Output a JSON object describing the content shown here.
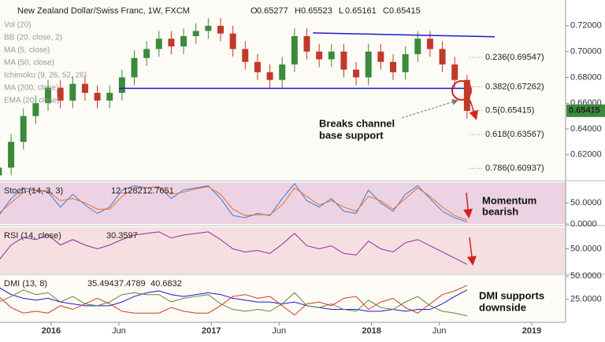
{
  "chart_data": [
    {
      "type": "candlestick",
      "title": "New Zealand Dollar/Swiss Franc, 1W, FXCM",
      "ohlc": [
        {
          "label": "O",
          "value": 0.65277
        },
        {
          "label": "H",
          "value": 0.65523
        },
        {
          "label": "L",
          "value": 0.65161
        },
        {
          "label": "C",
          "value": 0.65415
        }
      ],
      "indicator_labels": [
        "Vol (20)",
        "BB (20, close, 2)",
        "MA (5, close)",
        "MA (50, close)",
        "Ichimoku (9, 26, 52, 26)",
        "MA (200, close)",
        "EMA (20, close)"
      ],
      "x": [
        -17,
        -13,
        -9,
        -5,
        -1,
        3,
        7,
        11,
        15,
        19,
        23,
        27,
        31,
        35,
        39,
        43,
        47,
        51,
        55,
        59,
        63,
        67,
        71,
        75,
        79,
        83,
        87,
        91,
        95,
        99,
        103,
        107,
        111,
        115,
        119,
        123,
        127,
        131,
        135
      ],
      "open": [
        0.604,
        0.61,
        0.63,
        0.65,
        0.66,
        0.672,
        0.662,
        0.675,
        0.668,
        0.662,
        0.668,
        0.68,
        0.695,
        0.702,
        0.71,
        0.704,
        0.712,
        0.716,
        0.72,
        0.714,
        0.702,
        0.692,
        0.684,
        0.678,
        0.69,
        0.712,
        0.7,
        0.694,
        0.7,
        0.686,
        0.68,
        0.7,
        0.692,
        0.684,
        0.698,
        0.71,
        0.702,
        0.69,
        0.678
      ],
      "high": [
        0.614,
        0.636,
        0.656,
        0.666,
        0.678,
        0.678,
        0.681,
        0.681,
        0.674,
        0.674,
        0.686,
        0.701,
        0.708,
        0.716,
        0.716,
        0.718,
        0.722,
        0.726,
        0.726,
        0.72,
        0.708,
        0.698,
        0.69,
        0.696,
        0.718,
        0.718,
        0.706,
        0.706,
        0.706,
        0.692,
        0.706,
        0.706,
        0.698,
        0.704,
        0.716,
        0.716,
        0.708,
        0.696,
        0.682
      ],
      "low": [
        0.598,
        0.604,
        0.624,
        0.644,
        0.654,
        0.656,
        0.656,
        0.662,
        0.656,
        0.656,
        0.662,
        0.674,
        0.689,
        0.696,
        0.698,
        0.698,
        0.706,
        0.71,
        0.708,
        0.696,
        0.686,
        0.678,
        0.672,
        0.672,
        0.684,
        0.694,
        0.688,
        0.688,
        0.68,
        0.674,
        0.674,
        0.686,
        0.678,
        0.678,
        0.692,
        0.696,
        0.684,
        0.672,
        0.648
      ],
      "close": [
        0.61,
        0.63,
        0.65,
        0.66,
        0.672,
        0.662,
        0.675,
        0.668,
        0.662,
        0.668,
        0.68,
        0.695,
        0.702,
        0.71,
        0.704,
        0.712,
        0.716,
        0.72,
        0.714,
        0.702,
        0.692,
        0.684,
        0.678,
        0.69,
        0.712,
        0.7,
        0.694,
        0.7,
        0.686,
        0.68,
        0.7,
        0.692,
        0.684,
        0.698,
        0.71,
        0.702,
        0.69,
        0.678,
        0.654
      ],
      "up_color": "#3c8a3c",
      "down_color": "#c0392b",
      "xlim": [
        -16.6,
        167
      ],
      "ylim": [
        0.601,
        0.74
      ],
      "yticks": [
        {
          "value": 0.62,
          "label": "0.62000"
        },
        {
          "value": 0.64,
          "label": "0.64000"
        },
        {
          "value": 0.66,
          "label": "0.66000"
        },
        {
          "value": 0.68,
          "label": "0.68000"
        },
        {
          "value": 0.7,
          "label": "0.70000"
        },
        {
          "value": 0.72,
          "label": "0.72000"
        }
      ],
      "last_price": 0.65415,
      "lines": [
        {
          "x": [
            85,
            144
          ],
          "y": [
            0.7145,
            0.7115
          ],
          "color": "#1a1ad0"
        },
        {
          "x": [
            22,
            134
          ],
          "y": [
            0.6715,
            0.6715
          ],
          "color": "#1a1ad0"
        }
      ],
      "fib": [
        {
          "label": "0.236(0.69547)",
          "value": 0.69547,
          "color": "#222"
        },
        {
          "label": "0.382(0.67262)",
          "value": 0.67262,
          "color": "#222"
        },
        {
          "label": "0.5(0.65415)",
          "value": 0.65415,
          "color": "#3c8a3c"
        },
        {
          "label": "0.618(0.63567)",
          "value": 0.63567,
          "color": "#222"
        },
        {
          "label": "0.786(0.60937)",
          "value": 0.60937,
          "color": "#222"
        }
      ],
      "annotations": [
        "Breaks channel",
        "base support"
      ]
    },
    {
      "type": "line",
      "title": "Stoch (14, 3, 3)",
      "x": [
        -17,
        -13,
        -9,
        -5,
        -1,
        3,
        7,
        11,
        15,
        19,
        23,
        27,
        31,
        35,
        39,
        43,
        47,
        51,
        55,
        59,
        63,
        67,
        71,
        75,
        79,
        83,
        87,
        91,
        95,
        99,
        103,
        107,
        111,
        115,
        119,
        123,
        127,
        131,
        135
      ],
      "series": [
        {
          "color": "#3a7bd5",
          "legend_value": 12.1282,
          "values": [
            20,
            60,
            85,
            80,
            75,
            40,
            70,
            45,
            25,
            40,
            80,
            90,
            85,
            88,
            60,
            80,
            85,
            90,
            60,
            20,
            15,
            25,
            20,
            60,
            95,
            55,
            40,
            60,
            30,
            25,
            80,
            50,
            30,
            70,
            90,
            60,
            30,
            15,
            5
          ]
        },
        {
          "color": "#e8702a",
          "legend_value": 12.7651,
          "values": [
            25,
            50,
            75,
            80,
            78,
            55,
            60,
            50,
            35,
            35,
            65,
            85,
            86,
            86,
            70,
            75,
            83,
            88,
            70,
            35,
            20,
            22,
            22,
            45,
            85,
            65,
            45,
            55,
            40,
            30,
            65,
            55,
            35,
            60,
            85,
            65,
            40,
            20,
            10
          ]
        }
      ],
      "xlim": [
        -16.6,
        167
      ],
      "ylim": [
        0,
        98
      ],
      "yticks": [
        {
          "value": 50,
          "label": "50.0000"
        },
        {
          "value": 0,
          "label": "0.0000"
        }
      ],
      "annotations": [
        "Momentum",
        "bearish"
      ]
    },
    {
      "type": "line",
      "title": "RSI (14, close)",
      "x": [
        -17,
        -13,
        -9,
        -5,
        -1,
        3,
        7,
        11,
        15,
        19,
        23,
        27,
        31,
        35,
        39,
        43,
        47,
        51,
        55,
        59,
        63,
        67,
        71,
        75,
        79,
        83,
        87,
        91,
        95,
        99,
        103,
        107,
        111,
        115,
        119,
        123,
        127,
        131,
        135
      ],
      "series": [
        {
          "color": "#8e2da0",
          "legend_value": 30.3597,
          "values": [
            35,
            55,
            65,
            62,
            68,
            55,
            62,
            55,
            50,
            55,
            62,
            68,
            70,
            72,
            64,
            68,
            70,
            72,
            62,
            50,
            46,
            48,
            44,
            56,
            70,
            54,
            50,
            54,
            44,
            42,
            60,
            50,
            46,
            58,
            62,
            54,
            46,
            38,
            30
          ]
        }
      ],
      "xlim": [
        -16.6,
        167
      ],
      "ylim": [
        18,
        78
      ],
      "yticks": [
        {
          "value": 50,
          "label": "50.0000"
        }
      ],
      "annotations": []
    },
    {
      "type": "line",
      "title": "DMI (13, 8)",
      "x": [
        -17,
        -13,
        -9,
        -5,
        -1,
        3,
        7,
        11,
        15,
        19,
        23,
        27,
        31,
        35,
        39,
        43,
        47,
        51,
        55,
        59,
        63,
        67,
        71,
        75,
        79,
        83,
        87,
        91,
        95,
        99,
        103,
        107,
        111,
        115,
        119,
        123,
        127,
        131,
        135
      ],
      "series": [
        {
          "color": "#1a1ad0",
          "legend_value": 35.4943,
          "values": [
            38,
            30,
            26,
            24,
            26,
            22,
            20,
            18,
            18,
            18,
            22,
            28,
            32,
            34,
            30,
            28,
            30,
            32,
            30,
            26,
            24,
            22,
            22,
            20,
            22,
            18,
            16,
            14,
            14,
            14,
            12,
            12,
            14,
            12,
            14,
            14,
            20,
            28,
            35
          ]
        },
        {
          "color": "#5a8a3a",
          "legend_value": 7.4789,
          "values": [
            22,
            28,
            35,
            30,
            32,
            22,
            28,
            20,
            18,
            22,
            30,
            32,
            30,
            30,
            22,
            26,
            28,
            30,
            20,
            14,
            12,
            14,
            12,
            20,
            32,
            18,
            16,
            20,
            14,
            12,
            24,
            16,
            14,
            22,
            28,
            18,
            12,
            10,
            7
          ]
        },
        {
          "color": "#d03a2a",
          "legend_value": 40.6832,
          "values": [
            28,
            16,
            10,
            12,
            10,
            18,
            14,
            20,
            26,
            20,
            12,
            10,
            10,
            10,
            16,
            12,
            10,
            10,
            18,
            28,
            30,
            26,
            28,
            18,
            8,
            20,
            22,
            18,
            26,
            28,
            14,
            22,
            26,
            16,
            10,
            20,
            30,
            34,
            40
          ]
        }
      ],
      "xlim": [
        -16.6,
        167
      ],
      "ylim": [
        0,
        51
      ],
      "yticks": [
        {
          "value": 50,
          "label": "50.0000"
        },
        {
          "value": 25,
          "label": "25.0000"
        }
      ],
      "xticks": [
        {
          "value": 0,
          "label": "2016"
        },
        {
          "value": 22,
          "label": "Jun"
        },
        {
          "value": 52,
          "label": "2017"
        },
        {
          "value": 74,
          "label": "Jun"
        },
        {
          "value": 104,
          "label": "2018"
        },
        {
          "value": 126,
          "label": "Jun"
        },
        {
          "value": 156,
          "label": "2019"
        }
      ],
      "annotations": [
        "DMI supports",
        "downside"
      ]
    }
  ]
}
